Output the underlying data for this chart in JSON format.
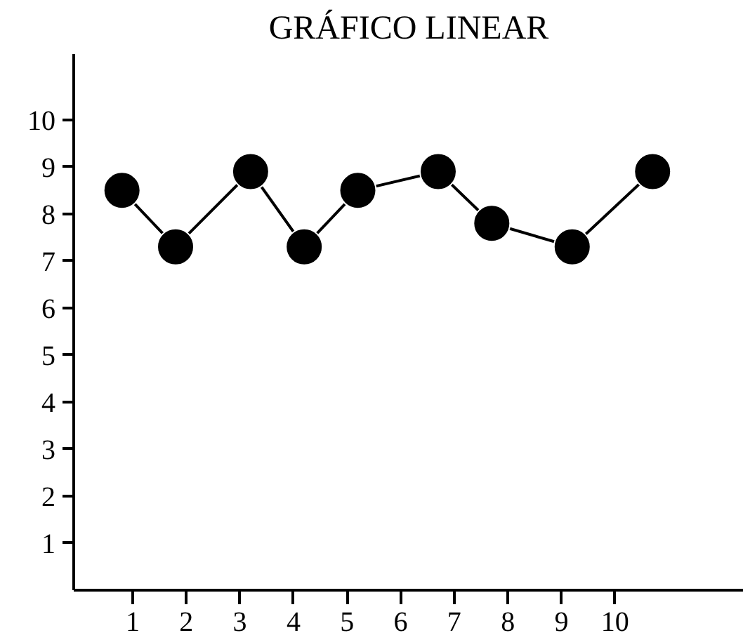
{
  "chart_data": {
    "type": "line",
    "title": "GRÁFICO LINEAR",
    "x": [
      0.8,
      1.8,
      3.2,
      4.2,
      5.2,
      6.7,
      7.7,
      9.2,
      10.7
    ],
    "series": [
      {
        "color": "#000000",
        "values": [
          8.5,
          7.3,
          8.9,
          7.3,
          8.5,
          8.9,
          7.8,
          7.3,
          8.9
        ]
      }
    ],
    "xlim": [
      -0.1,
      12.4
    ],
    "ylim": [
      0,
      11.4
    ],
    "xticks": [
      1,
      2,
      3,
      4,
      5,
      6,
      7,
      8,
      9,
      10
    ],
    "yticks": [
      1,
      2,
      3,
      4,
      5,
      6,
      7,
      8,
      9,
      10
    ],
    "marker": "circle",
    "line_style": "solid",
    "grid": false
  }
}
